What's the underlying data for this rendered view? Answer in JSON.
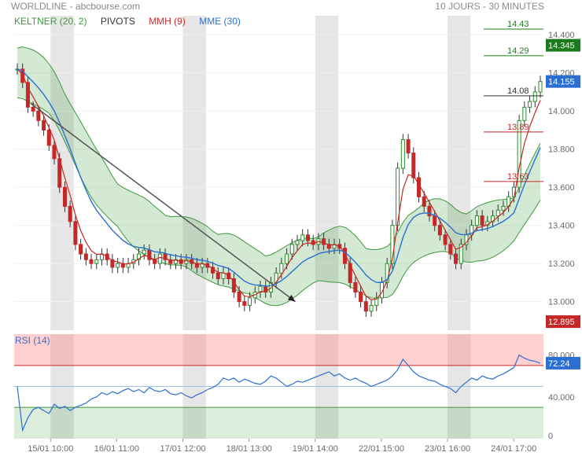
{
  "header": {
    "title": "WORLDLINE - abcbourse.com",
    "period": "10 JOURS - 30 MINUTES"
  },
  "legend": [
    {
      "label": "KELTNER (20, 2)",
      "color": "#3c9a3c"
    },
    {
      "label": "PIVOTS",
      "color": "#333333"
    },
    {
      "label": "MMH (9)",
      "color": "#c62828"
    },
    {
      "label": "MME (30)",
      "color": "#2a6fd1"
    }
  ],
  "rsi_label": "RSI (14)",
  "chart_data": {
    "type": "candlestick",
    "title": "WORLDLINE - abcbourse.com",
    "subtitle": "10 JOURS - 30 MINUTES",
    "x_tick_labels": [
      "15/01 10:00",
      "16/01 11:00",
      "17/01 12:00",
      "18/01 13:00",
      "19/01 14:00",
      "22/01 15:00",
      "23/01 16:00",
      "24/01 17:00"
    ],
    "y_axis": {
      "ylim": [
        12.85,
        14.5
      ],
      "ticks": [
        "13.000",
        "13.200",
        "13.400",
        "13.600",
        "13.800",
        "14.000",
        "14.200",
        "14.400"
      ]
    },
    "price_tags": [
      {
        "value": 14.345,
        "label": "14.345",
        "color": "#1b7a1b"
      },
      {
        "value": 14.155,
        "label": "14.155",
        "color": "#2a6fd1"
      },
      {
        "value": 12.895,
        "label": "12.895",
        "color": "#c62828"
      }
    ],
    "pivots": [
      {
        "label": "14.43",
        "value": 14.43,
        "color": "#1b7a1b"
      },
      {
        "label": "14.29",
        "value": 14.29,
        "color": "#1b7a1b"
      },
      {
        "label": "14.08",
        "value": 14.08,
        "color": "#333333"
      },
      {
        "label": "13.89",
        "value": 13.89,
        "color": "#c62828"
      },
      {
        "label": "13.63",
        "value": 13.63,
        "color": "#c62828"
      }
    ],
    "day_shading": "alternating",
    "trend_arrow": {
      "from": [
        0.25,
        14.04
      ],
      "to": [
        4.25,
        13.0
      ]
    },
    "series": [
      {
        "name": "Close (approx.)",
        "values": [
          14.22,
          14.15,
          14.02,
          14.0,
          13.95,
          13.9,
          13.82,
          13.75,
          13.6,
          13.5,
          13.42,
          13.3,
          13.25,
          13.22,
          13.2,
          13.22,
          13.25,
          13.22,
          13.18,
          13.2,
          13.18,
          13.2,
          13.22,
          13.25,
          13.27,
          13.22,
          13.2,
          13.25,
          13.22,
          13.2,
          13.22,
          13.2,
          13.22,
          13.2,
          13.18,
          13.2,
          13.18,
          13.15,
          13.12,
          13.15,
          13.12,
          13.05,
          13.0,
          12.98,
          13.02,
          13.05,
          13.08,
          13.05,
          13.1,
          13.15,
          13.2,
          13.25,
          13.3,
          13.32,
          13.35,
          13.32,
          13.3,
          13.33,
          13.3,
          13.28,
          13.3,
          13.28,
          13.2,
          13.1,
          13.05,
          13.0,
          12.95,
          12.98,
          13.02,
          13.1,
          13.2,
          13.4,
          13.7,
          13.85,
          13.78,
          13.65,
          13.55,
          13.5,
          13.45,
          13.4,
          13.35,
          13.3,
          13.25,
          13.2,
          13.3,
          13.35,
          13.4,
          13.45,
          13.4,
          13.42,
          13.45,
          13.48,
          13.5,
          13.55,
          13.6,
          13.95,
          14.02,
          14.05,
          14.1,
          14.155
        ]
      }
    ],
    "rsi": {
      "name": "RSI (14)",
      "ylim": [
        0,
        100
      ],
      "ticks": [
        "0",
        "40.000",
        "80.000"
      ],
      "overbought": 70,
      "oversold": 30,
      "midline": 50,
      "current_label": "72.24",
      "values": [
        50,
        8,
        20,
        28,
        30,
        27,
        24,
        33,
        29,
        31,
        27,
        30,
        32,
        34,
        38,
        40,
        44,
        42,
        45,
        43,
        46,
        48,
        45,
        47,
        44,
        49,
        46,
        45,
        47,
        43,
        42,
        44,
        41,
        39,
        42,
        44,
        47,
        49,
        52,
        58,
        56,
        58,
        54,
        57,
        55,
        53,
        52,
        55,
        60,
        58,
        54,
        50,
        52,
        55,
        54,
        56,
        58,
        60,
        62,
        64,
        60,
        62,
        58,
        56,
        58,
        55,
        53,
        50,
        52,
        54,
        56,
        60,
        66,
        76,
        70,
        64,
        60,
        58,
        56,
        55,
        52,
        50,
        48,
        44,
        50,
        54,
        58,
        56,
        60,
        58,
        57,
        60,
        62,
        65,
        68,
        80,
        77,
        75,
        74,
        72.24
      ]
    }
  }
}
